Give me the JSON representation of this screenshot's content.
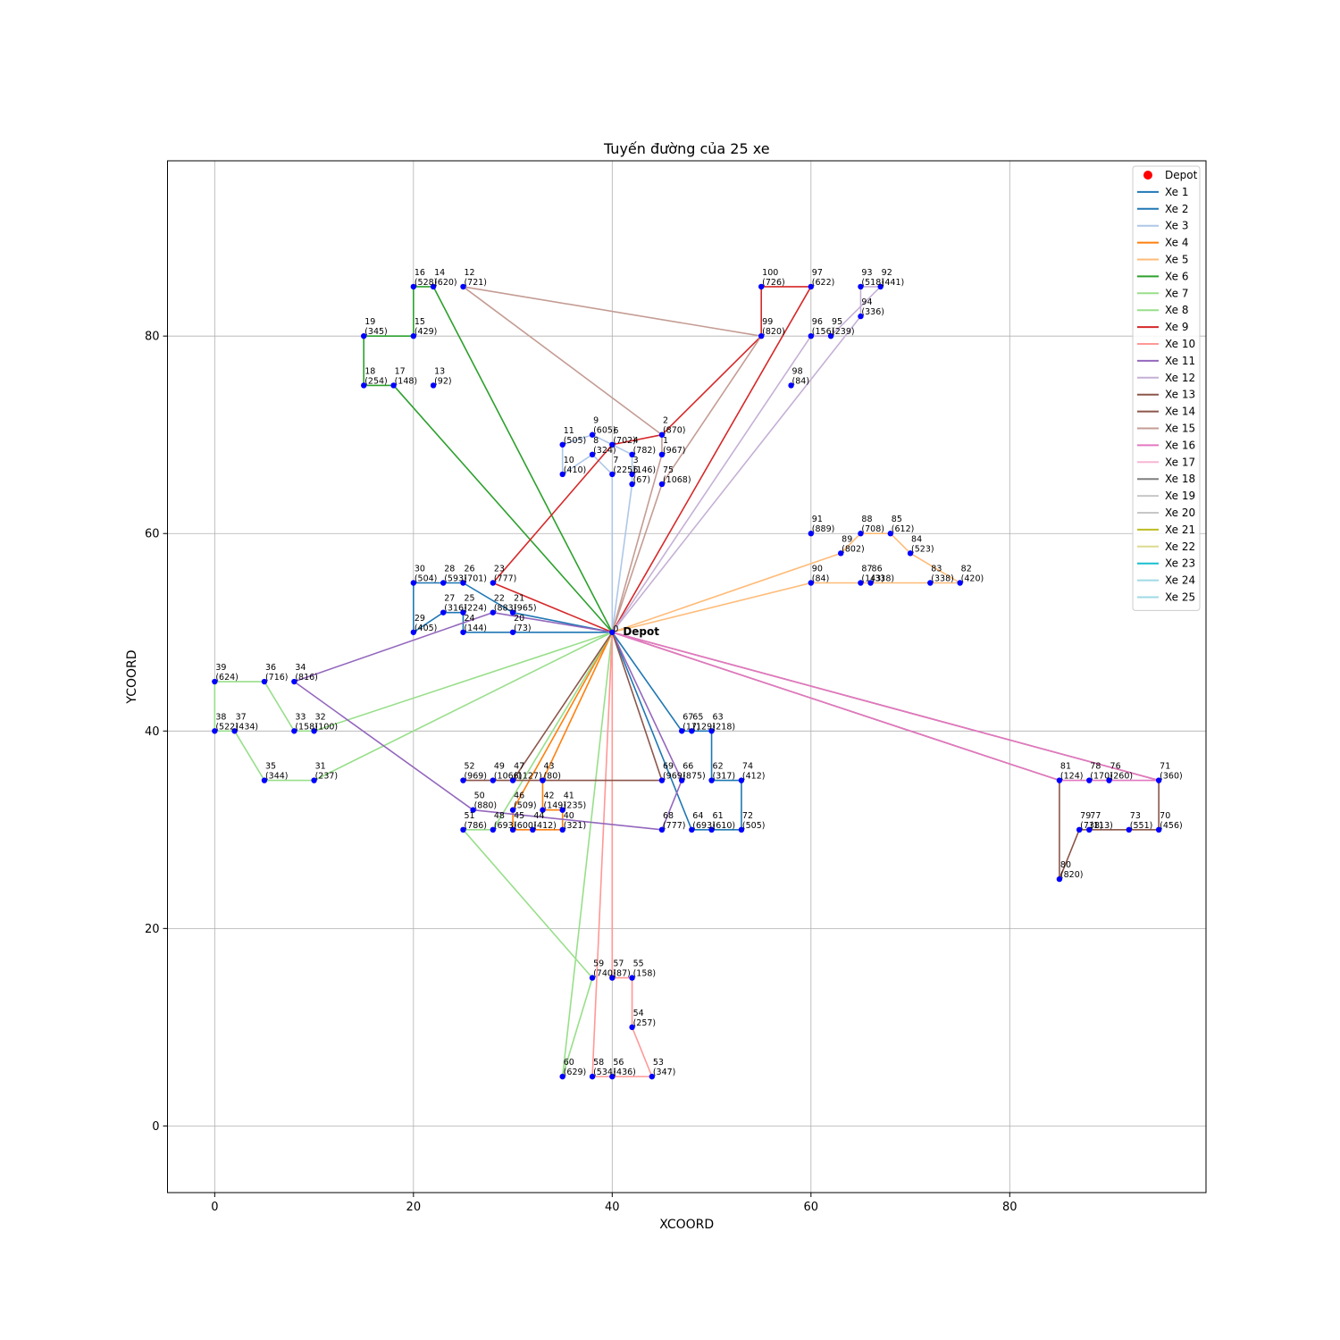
{
  "chart_data": {
    "type": "line",
    "title": "Tuyến đường của 25 xe",
    "xlabel": "XCOORD",
    "ylabel": "YCOORD",
    "xlim": [
      -4.75,
      99.75
    ],
    "ylim": [
      -6.75,
      97.75
    ],
    "xticks": [
      0,
      20,
      40,
      60,
      80
    ],
    "yticks": [
      0,
      20,
      40,
      60,
      80
    ],
    "grid": true,
    "legend_position": "top-right",
    "depot": {
      "id": 0,
      "x": 40,
      "y": 50,
      "label": "Depot",
      "color": "#ff0000"
    },
    "legend_depot": "Depot",
    "customers": [
      {
        "id": 1,
        "x": 45,
        "y": 68,
        "demand": 967
      },
      {
        "id": 2,
        "x": 45,
        "y": 70,
        "demand": 870
      },
      {
        "id": 3,
        "x": 42,
        "y": 66,
        "demand": 146
      },
      {
        "id": 4,
        "x": 42,
        "y": 68,
        "demand": 782
      },
      {
        "id": 5,
        "x": 42,
        "y": 65,
        "demand": 67
      },
      {
        "id": 6,
        "x": 40,
        "y": 69,
        "demand": 702
      },
      {
        "id": 7,
        "x": 40,
        "y": 66,
        "demand": 225
      },
      {
        "id": 8,
        "x": 38,
        "y": 68,
        "demand": 324
      },
      {
        "id": 9,
        "x": 38,
        "y": 70,
        "demand": 605
      },
      {
        "id": 10,
        "x": 35,
        "y": 66,
        "demand": 410
      },
      {
        "id": 11,
        "x": 35,
        "y": 69,
        "demand": 505
      },
      {
        "id": 12,
        "x": 25,
        "y": 85,
        "demand": 721
      },
      {
        "id": 13,
        "x": 22,
        "y": 75,
        "demand": 92
      },
      {
        "id": 14,
        "x": 22,
        "y": 85,
        "demand": 620
      },
      {
        "id": 15,
        "x": 20,
        "y": 80,
        "demand": 429
      },
      {
        "id": 16,
        "x": 20,
        "y": 85,
        "demand": 528
      },
      {
        "id": 17,
        "x": 18,
        "y": 75,
        "demand": 148
      },
      {
        "id": 18,
        "x": 15,
        "y": 75,
        "demand": 254
      },
      {
        "id": 19,
        "x": 15,
        "y": 80,
        "demand": 345
      },
      {
        "id": 20,
        "x": 30,
        "y": 50,
        "demand": 73
      },
      {
        "id": 21,
        "x": 30,
        "y": 52,
        "demand": 965
      },
      {
        "id": 22,
        "x": 28,
        "y": 52,
        "demand": 883
      },
      {
        "id": 23,
        "x": 28,
        "y": 55,
        "demand": 777
      },
      {
        "id": 24,
        "x": 25,
        "y": 50,
        "demand": 144
      },
      {
        "id": 25,
        "x": 25,
        "y": 52,
        "demand": 224
      },
      {
        "id": 26,
        "x": 25,
        "y": 55,
        "demand": 701
      },
      {
        "id": 27,
        "x": 23,
        "y": 52,
        "demand": 316
      },
      {
        "id": 28,
        "x": 23,
        "y": 55,
        "demand": 593
      },
      {
        "id": 29,
        "x": 20,
        "y": 50,
        "demand": 405
      },
      {
        "id": 30,
        "x": 20,
        "y": 55,
        "demand": 504
      },
      {
        "id": 31,
        "x": 10,
        "y": 35,
        "demand": 237
      },
      {
        "id": 32,
        "x": 10,
        "y": 40,
        "demand": 100
      },
      {
        "id": 33,
        "x": 8,
        "y": 40,
        "demand": 158
      },
      {
        "id": 34,
        "x": 8,
        "y": 45,
        "demand": 816
      },
      {
        "id": 35,
        "x": 5,
        "y": 35,
        "demand": 344
      },
      {
        "id": 36,
        "x": 5,
        "y": 45,
        "demand": 716
      },
      {
        "id": 37,
        "x": 2,
        "y": 40,
        "demand": 434
      },
      {
        "id": 38,
        "x": 0,
        "y": 40,
        "demand": 522
      },
      {
        "id": 39,
        "x": 0,
        "y": 45,
        "demand": 624
      },
      {
        "id": 40,
        "x": 35,
        "y": 30,
        "demand": 321
      },
      {
        "id": 41,
        "x": 35,
        "y": 32,
        "demand": 235
      },
      {
        "id": 42,
        "x": 33,
        "y": 32,
        "demand": 149
      },
      {
        "id": 43,
        "x": 33,
        "y": 35,
        "demand": 80
      },
      {
        "id": 44,
        "x": 32,
        "y": 30,
        "demand": 412
      },
      {
        "id": 45,
        "x": 30,
        "y": 30,
        "demand": 600
      },
      {
        "id": 46,
        "x": 30,
        "y": 32,
        "demand": 509
      },
      {
        "id": 47,
        "x": 30,
        "y": 35,
        "demand": 1127
      },
      {
        "id": 48,
        "x": 28,
        "y": 30,
        "demand": 693
      },
      {
        "id": 49,
        "x": 28,
        "y": 35,
        "demand": 1066
      },
      {
        "id": 50,
        "x": 26,
        "y": 32,
        "demand": 880
      },
      {
        "id": 51,
        "x": 25,
        "y": 30,
        "demand": 786
      },
      {
        "id": 52,
        "x": 25,
        "y": 35,
        "demand": 969
      },
      {
        "id": 53,
        "x": 44,
        "y": 5,
        "demand": 347
      },
      {
        "id": 54,
        "x": 42,
        "y": 10,
        "demand": 257
      },
      {
        "id": 55,
        "x": 42,
        "y": 15,
        "demand": 158
      },
      {
        "id": 56,
        "x": 40,
        "y": 5,
        "demand": 436
      },
      {
        "id": 57,
        "x": 40,
        "y": 15,
        "demand": 87
      },
      {
        "id": 58,
        "x": 38,
        "y": 5,
        "demand": 534
      },
      {
        "id": 59,
        "x": 38,
        "y": 15,
        "demand": 740
      },
      {
        "id": 60,
        "x": 35,
        "y": 5,
        "demand": 629
      },
      {
        "id": 61,
        "x": 50,
        "y": 30,
        "demand": 610
      },
      {
        "id": 62,
        "x": 50,
        "y": 35,
        "demand": 317
      },
      {
        "id": 63,
        "x": 50,
        "y": 40,
        "demand": 218
      },
      {
        "id": 64,
        "x": 48,
        "y": 30,
        "demand": 693
      },
      {
        "id": 65,
        "x": 48,
        "y": 40,
        "demand": 129
      },
      {
        "id": 66,
        "x": 47,
        "y": 35,
        "demand": 875
      },
      {
        "id": 67,
        "x": 47,
        "y": 40,
        "demand": 17
      },
      {
        "id": 68,
        "x": 45,
        "y": 30,
        "demand": 777
      },
      {
        "id": 69,
        "x": 45,
        "y": 35,
        "demand": 969
      },
      {
        "id": 70,
        "x": 95,
        "y": 30,
        "demand": 456
      },
      {
        "id": 71,
        "x": 95,
        "y": 35,
        "demand": 360
      },
      {
        "id": 72,
        "x": 53,
        "y": 30,
        "demand": 505
      },
      {
        "id": 73,
        "x": 92,
        "y": 30,
        "demand": 551
      },
      {
        "id": 74,
        "x": 53,
        "y": 35,
        "demand": 412
      },
      {
        "id": 75,
        "x": 45,
        "y": 65,
        "demand": 1068
      },
      {
        "id": 76,
        "x": 90,
        "y": 35,
        "demand": 260
      },
      {
        "id": 77,
        "x": 88,
        "y": 30,
        "demand": 113
      },
      {
        "id": 78,
        "x": 88,
        "y": 35,
        "demand": 170
      },
      {
        "id": 79,
        "x": 87,
        "y": 30,
        "demand": 738
      },
      {
        "id": 80,
        "x": 85,
        "y": 25,
        "demand": 820
      },
      {
        "id": 81,
        "x": 85,
        "y": 35,
        "demand": 124
      },
      {
        "id": 82,
        "x": 75,
        "y": 55,
        "demand": 420
      },
      {
        "id": 83,
        "x": 72,
        "y": 55,
        "demand": 338
      },
      {
        "id": 84,
        "x": 70,
        "y": 58,
        "demand": 523
      },
      {
        "id": 85,
        "x": 68,
        "y": 60,
        "demand": 612
      },
      {
        "id": 86,
        "x": 66,
        "y": 55,
        "demand": 338
      },
      {
        "id": 87,
        "x": 65,
        "y": 55,
        "demand": 143
      },
      {
        "id": 88,
        "x": 65,
        "y": 60,
        "demand": 708
      },
      {
        "id": 89,
        "x": 63,
        "y": 58,
        "demand": 802
      },
      {
        "id": 90,
        "x": 60,
        "y": 55,
        "demand": 84
      },
      {
        "id": 91,
        "x": 60,
        "y": 60,
        "demand": 889
      },
      {
        "id": 92,
        "x": 67,
        "y": 85,
        "demand": 441
      },
      {
        "id": 93,
        "x": 65,
        "y": 85,
        "demand": 518
      },
      {
        "id": 94,
        "x": 65,
        "y": 82,
        "demand": 336
      },
      {
        "id": 95,
        "x": 62,
        "y": 80,
        "demand": 239
      },
      {
        "id": 96,
        "x": 60,
        "y": 80,
        "demand": 156
      },
      {
        "id": 97,
        "x": 60,
        "y": 85,
        "demand": 622
      },
      {
        "id": 98,
        "x": 58,
        "y": 75,
        "demand": 84
      },
      {
        "id": 99,
        "x": 55,
        "y": 80,
        "demand": 820
      },
      {
        "id": 100,
        "x": 55,
        "y": 85,
        "demand": 726
      }
    ],
    "routes": [
      {
        "name": "Xe 1",
        "color": "#1f77b4",
        "stops": [
          0,
          20,
          24,
          25,
          27,
          29,
          30,
          28,
          26,
          21,
          0
        ]
      },
      {
        "name": "Xe 2",
        "color": "#1f77b4",
        "stops": [
          0,
          67,
          65,
          63,
          62,
          74,
          72,
          61,
          64,
          0
        ]
      },
      {
        "name": "Xe 3",
        "color": "#aec7e8",
        "stops": [
          0,
          5,
          3,
          4,
          6,
          9,
          11,
          10,
          8,
          7,
          0
        ]
      },
      {
        "name": "Xe 4",
        "color": "#ff7f0e",
        "stops": [
          0,
          43,
          42,
          41,
          40,
          44,
          45,
          46,
          0
        ]
      },
      {
        "name": "Xe 5",
        "color": "#ffbb78",
        "stops": [
          0,
          90,
          87,
          86,
          83,
          82,
          84,
          85,
          88,
          89,
          0
        ]
      },
      {
        "name": "Xe 6",
        "color": "#2ca02c",
        "stops": [
          0,
          17,
          18,
          19,
          15,
          16,
          14,
          0
        ]
      },
      {
        "name": "Xe 7",
        "color": "#98df8a",
        "stops": [
          0,
          32,
          33,
          36,
          39,
          38,
          37,
          35,
          31,
          0
        ]
      },
      {
        "name": "Xe 8",
        "color": "#98df8a",
        "stops": [
          0,
          60,
          59,
          51,
          48,
          0
        ]
      },
      {
        "name": "Xe 9",
        "color": "#d62728",
        "stops": [
          0,
          23,
          6,
          2,
          99,
          100,
          97,
          0
        ]
      },
      {
        "name": "Xe 10",
        "color": "#ff9896",
        "stops": [
          0,
          57,
          55,
          54,
          53,
          56,
          58,
          0
        ]
      },
      {
        "name": "Xe 11",
        "color": "#9467bd",
        "stops": [
          0,
          22,
          34,
          50,
          68,
          66,
          0
        ]
      },
      {
        "name": "Xe 12",
        "color": "#c5b0d5",
        "stops": [
          0,
          96,
          95,
          92,
          93,
          94,
          0
        ]
      },
      {
        "name": "Xe 13",
        "color": "#8c564b",
        "stops": [
          0,
          71,
          70,
          73,
          77,
          79,
          80,
          81,
          0
        ]
      },
      {
        "name": "Xe 14",
        "color": "#8c564b",
        "stops": [
          0,
          69,
          52,
          49,
          47,
          0
        ]
      },
      {
        "name": "Xe 15",
        "color": "#c49c94",
        "stops": [
          0,
          1,
          2,
          12,
          99,
          75,
          0
        ]
      },
      {
        "name": "Xe 16",
        "color": "#e377c2",
        "stops": [
          0,
          81,
          78,
          76,
          71,
          0
        ]
      },
      {
        "name": "Xe 17",
        "color": "#f7b6d2",
        "stops": [
          0,
          0
        ]
      },
      {
        "name": "Xe 18",
        "color": "#7f7f7f",
        "stops": [
          0,
          0
        ]
      },
      {
        "name": "Xe 19",
        "color": "#c7c7c7",
        "stops": [
          0,
          0
        ]
      },
      {
        "name": "Xe 20",
        "color": "#c7c7c7",
        "stops": [
          0,
          0
        ]
      },
      {
        "name": "Xe 21",
        "color": "#bcbd22",
        "stops": [
          0,
          0
        ]
      },
      {
        "name": "Xe 22",
        "color": "#dbdb8d",
        "stops": [
          0,
          0
        ]
      },
      {
        "name": "Xe 23",
        "color": "#17becf",
        "stops": [
          0,
          0
        ]
      },
      {
        "name": "Xe 24",
        "color": "#9edae5",
        "stops": [
          0,
          0
        ]
      },
      {
        "name": "Xe 25",
        "color": "#9edae5",
        "stops": [
          0,
          0
        ]
      }
    ]
  }
}
